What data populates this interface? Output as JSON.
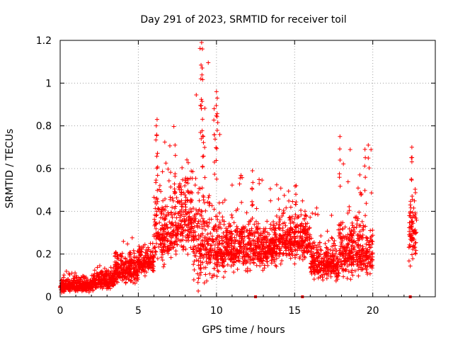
{
  "chart_data": {
    "type": "scatter",
    "title": "Day 291 of 2023, SRMTID for receiver toil",
    "xlabel": "GPS time / hours",
    "ylabel": "SRMTID / TECUs",
    "xlim": [
      0,
      24
    ],
    "ylim": [
      0,
      1.2
    ],
    "x_ticks": [
      0,
      5,
      10,
      15,
      20
    ],
    "x_tick_labels": [
      "0",
      "5",
      "10",
      "15",
      "20"
    ],
    "y_ticks": [
      0,
      0.2,
      0.4,
      0.6,
      0.8,
      1.0,
      1.2
    ],
    "y_tick_labels": [
      "0",
      "0.2",
      "0.4",
      "0.6",
      "0.8",
      "1",
      "1.2"
    ],
    "grid": true,
    "marker": "+",
    "color": "#ff0000",
    "series": [
      {
        "name": "SRMTID",
        "profile": [
          {
            "x": [
              0.0,
              2.0
            ],
            "base": 0.05,
            "spread": 0.03,
            "max": 0.12
          },
          {
            "x": [
              2.0,
              3.5
            ],
            "base": 0.07,
            "spread": 0.04,
            "max": 0.15
          },
          {
            "x": [
              3.5,
              5.0
            ],
            "base": 0.12,
            "spread": 0.06,
            "max": 0.29
          },
          {
            "x": [
              5.0,
              6.0
            ],
            "base": 0.16,
            "spread": 0.06,
            "max": 0.25
          },
          {
            "x": [
              6.0,
              7.5
            ],
            "base": 0.3,
            "spread": 0.15,
            "max": 0.83
          },
          {
            "x": [
              7.5,
              8.5
            ],
            "base": 0.35,
            "spread": 0.15,
            "max": 0.65
          },
          {
            "x": [
              8.5,
              9.5
            ],
            "base": 0.25,
            "spread": 0.2,
            "max": 1.19
          },
          {
            "x": [
              9.5,
              10.5
            ],
            "base": 0.22,
            "spread": 0.15,
            "max": 0.96
          },
          {
            "x": [
              10.5,
              14.0
            ],
            "base": 0.22,
            "spread": 0.1,
            "max": 0.59
          },
          {
            "x": [
              14.0,
              16.0
            ],
            "base": 0.26,
            "spread": 0.1,
            "max": 0.52
          },
          {
            "x": [
              16.0,
              17.8
            ],
            "base": 0.15,
            "spread": 0.08,
            "max": 0.42
          },
          {
            "x": [
              17.8,
              20.0
            ],
            "base": 0.2,
            "spread": 0.12,
            "max": 0.75
          },
          {
            "x": [
              22.3,
              22.8
            ],
            "base": 0.3,
            "spread": 0.15,
            "max": 0.7
          }
        ],
        "peaks": [
          {
            "x": 9.05,
            "y": 1.19
          },
          {
            "x": 9.1,
            "y": 1.16
          },
          {
            "x": 9.0,
            "y": 1.02
          },
          {
            "x": 10.0,
            "y": 0.96
          },
          {
            "x": 10.05,
            "y": 0.93
          },
          {
            "x": 9.85,
            "y": 0.88
          },
          {
            "x": 6.2,
            "y": 0.83
          },
          {
            "x": 6.15,
            "y": 0.8
          },
          {
            "x": 9.15,
            "y": 0.75
          },
          {
            "x": 17.9,
            "y": 0.75
          },
          {
            "x": 7.35,
            "y": 0.71
          },
          {
            "x": 22.5,
            "y": 0.7
          },
          {
            "x": 19.5,
            "y": 0.69
          },
          {
            "x": 12.3,
            "y": 0.59
          },
          {
            "x": 15.1,
            "y": 0.52
          }
        ]
      }
    ],
    "zero_markers_x": [
      12.5,
      15.5,
      22.4
    ]
  }
}
